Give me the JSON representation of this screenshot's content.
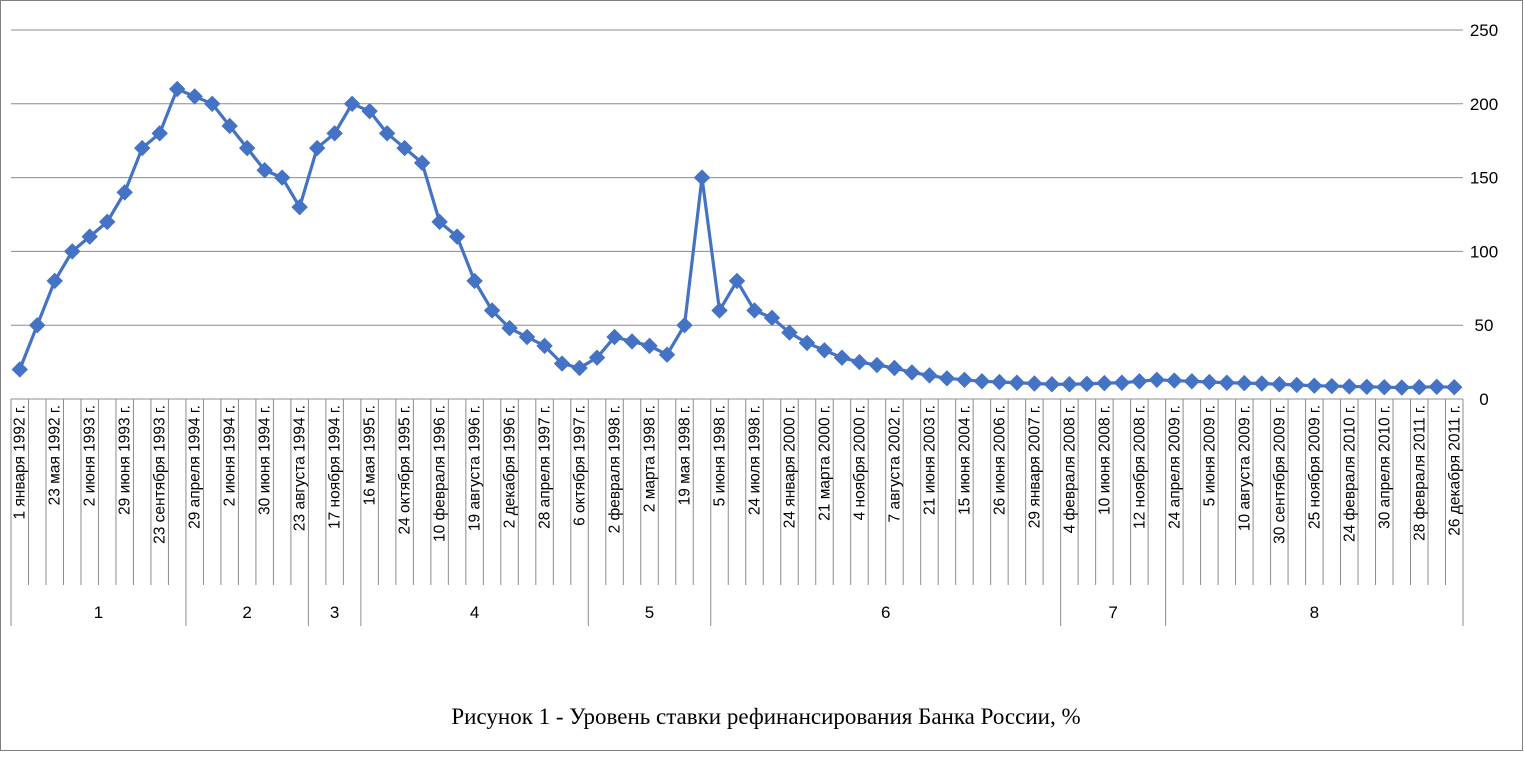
{
  "chart_data": {
    "type": "line",
    "title": "Рисунок 1 - Уровень ставки рефинансирования Банка России, %",
    "xlabel": "",
    "ylabel": "",
    "ylim": [
      0,
      250
    ],
    "yticks": [
      "0",
      "50",
      "100",
      "150",
      "200",
      "250"
    ],
    "y_axis_side": "right",
    "grid": true,
    "legend": "none",
    "series_color": "#4472C4",
    "marker": "diamond",
    "categories": [
      "1 января 1992 г.",
      "",
      "23 мая 1992 г.",
      "",
      "2 июня 1993 г.",
      "",
      "29 июня 1993 г.",
      "",
      "23 сентября 1993 г.",
      "",
      "29 апреля 1994 г.",
      "",
      "2 июня 1994 г.",
      "",
      "30 июня 1994 г.",
      "",
      "23 августа 1994 г.",
      "",
      "17 ноября 1994 г.",
      "",
      "16 мая 1995 г.",
      "",
      "24 октября 1995 г.",
      "",
      "10 февраля 1996 г.",
      "",
      "19 августа 1996 г.",
      "",
      "2 декабря 1996 г.",
      "",
      "28 апреля 1997 г.",
      "",
      "6 октября 1997 г.",
      "",
      "2 февраля 1998 г.",
      "",
      "2 марта 1998 г.",
      "",
      "19 мая 1998 г.",
      "",
      "5 июня 1998 г.",
      "",
      "24 июля 1998 г.",
      "",
      "24 января 2000 г.",
      "",
      "21 марта 2000 г.",
      "",
      "4 ноября 2000 г.",
      "",
      "7 августа 2002 г.",
      "",
      "21 июня 2003 г.",
      "",
      "15 июня 2004 г.",
      "",
      "26 июня 2006 г.",
      "",
      "29 января 2007 г.",
      "",
      "4 февраля 2008 г.",
      "",
      "10 июня 2008 г.",
      "",
      "12 ноября 2008 г.",
      "",
      "24 апреля 2009 г.",
      "",
      "5 июня 2009 г.",
      "",
      "10 августа 2009 г.",
      "",
      "30 сентября 2009 г.",
      "",
      "25 ноября 2009 г.",
      "",
      "24 февраля 2010 г.",
      "",
      "30 апреля 2010 г.",
      "",
      "28 февраля 2011 г.",
      "",
      "26 декабря 2011 г."
    ],
    "groups": [
      {
        "label": "1",
        "count": 10
      },
      {
        "label": "2",
        "count": 7
      },
      {
        "label": "3",
        "count": 3
      },
      {
        "label": "4",
        "count": 13
      },
      {
        "label": "5",
        "count": 7
      },
      {
        "label": "6",
        "count": 20
      },
      {
        "label": "7",
        "count": 6
      },
      {
        "label": "8",
        "count": 17
      }
    ],
    "series": [
      {
        "values": [
          20,
          50,
          80,
          100,
          110,
          120,
          140,
          170,
          180,
          210,
          205,
          200,
          185,
          170,
          155,
          150,
          130,
          170,
          180,
          200,
          195,
          180,
          170,
          160,
          120,
          110,
          80,
          60,
          48,
          42,
          36,
          24,
          21,
          28,
          42,
          39,
          36,
          30,
          50,
          150,
          60,
          80,
          60,
          55,
          45,
          38,
          33,
          28,
          25,
          23,
          21,
          18,
          16,
          14,
          13,
          12,
          11.5,
          11,
          10.5,
          10,
          10,
          10.25,
          10.75,
          11,
          12,
          13,
          12.5,
          12,
          11.5,
          11,
          10.75,
          10.5,
          10,
          9.5,
          9,
          8.75,
          8.5,
          8.25,
          8,
          7.75,
          8,
          8.25,
          8
        ]
      }
    ]
  }
}
